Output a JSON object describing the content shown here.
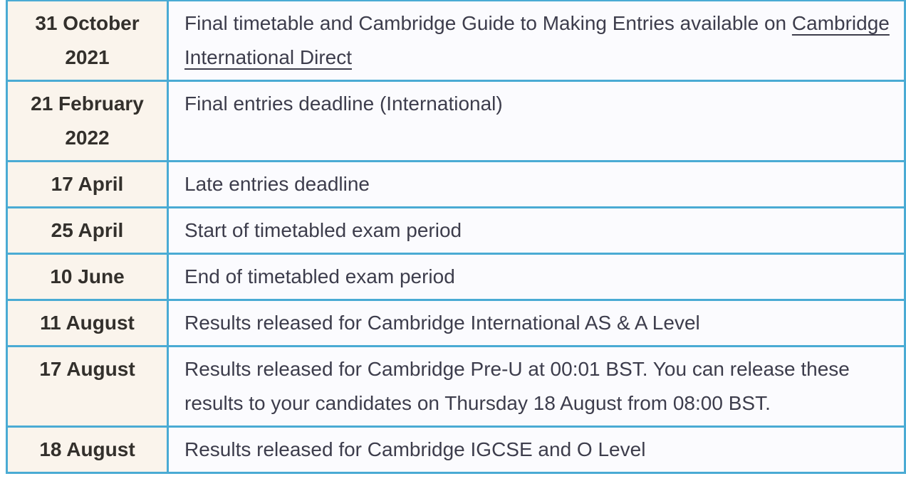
{
  "theme": {
    "border_color": "#4aabd4",
    "date_bg": "#faf4ec",
    "desc_bg": "#fbfbfe",
    "date_text": "#33302c",
    "body_text": "#3d3d4c",
    "page_bg": "#ffffff"
  },
  "table": {
    "name": "exam-series-key-dates-timetable",
    "rows": [
      {
        "date": "31 October 2021",
        "date_lines": [
          "31 October",
          "2021"
        ],
        "description": [
          {
            "type": "text",
            "value": "Final timetable and Cambridge Guide to Making Entries available on "
          },
          {
            "type": "link",
            "value": "Cambridge International Direct"
          }
        ]
      },
      {
        "date": "21 February 2022",
        "date_lines": [
          "21 February",
          "2022"
        ],
        "description": [
          {
            "type": "text",
            "value": "Final entries deadline (International)"
          }
        ]
      },
      {
        "date": "17 April",
        "date_lines": [
          "17 April"
        ],
        "description": [
          {
            "type": "text",
            "value": "Late entries deadline"
          }
        ]
      },
      {
        "date": "25 April",
        "date_lines": [
          "25 April"
        ],
        "description": [
          {
            "type": "text",
            "value": "Start of timetabled exam period"
          }
        ]
      },
      {
        "date": "10 June",
        "date_lines": [
          "10 June"
        ],
        "description": [
          {
            "type": "text",
            "value": "End of timetabled exam period"
          }
        ]
      },
      {
        "date": "11 August",
        "date_lines": [
          "11 August"
        ],
        "description": [
          {
            "type": "text",
            "value": "Results released for Cambridge International AS & A Level"
          }
        ]
      },
      {
        "date": "17 August",
        "date_lines": [
          "17 August"
        ],
        "description": [
          {
            "type": "text",
            "value": "Results released for Cambridge Pre-U at 00:01 BST. You can release these results to your candidates on Thursday 18 August from 08:00 BST."
          }
        ]
      },
      {
        "date": "18 August",
        "date_lines": [
          "18 August"
        ],
        "description": [
          {
            "type": "text",
            "value": "Results released for Cambridge IGCSE and O Level"
          }
        ]
      }
    ]
  }
}
